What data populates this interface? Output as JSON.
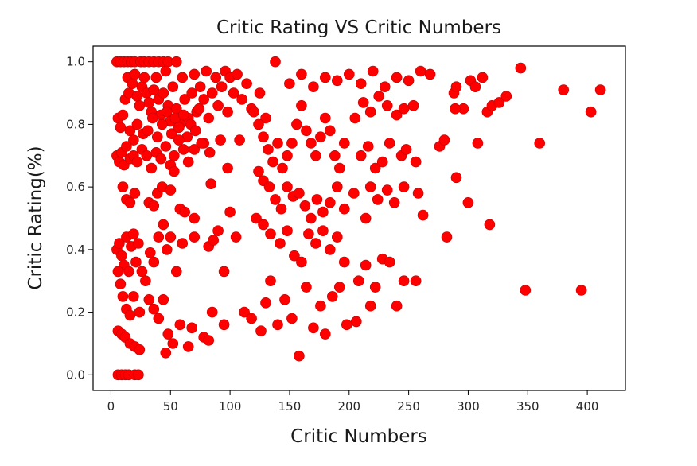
{
  "chart_data": {
    "type": "scatter",
    "title": "Critic Rating VS Critic Numbers",
    "xlabel": "Critic Numbers",
    "ylabel": "Critic Rating(%)",
    "xlim": [
      -15,
      432
    ],
    "ylim": [
      -0.05,
      1.05
    ],
    "xticks": [
      "0",
      "50",
      "100",
      "150",
      "200",
      "250",
      "300",
      "350",
      "400"
    ],
    "yticks": [
      "0.0",
      "0.2",
      "0.4",
      "0.6",
      "0.8",
      "1.0"
    ],
    "xtick_values": [
      0,
      50,
      100,
      150,
      200,
      250,
      300,
      350,
      400
    ],
    "ytick_values": [
      0.0,
      0.2,
      0.4,
      0.6,
      0.8,
      1.0
    ],
    "grid": false,
    "marker_color": "#ff0000",
    "edge_color": "#c00000",
    "points": [
      [
        5,
        1.0
      ],
      [
        8,
        1.0
      ],
      [
        11,
        1.0
      ],
      [
        14,
        1.0
      ],
      [
        17,
        1.0
      ],
      [
        20,
        1.0
      ],
      [
        25,
        1.0
      ],
      [
        28,
        1.0
      ],
      [
        32,
        1.0
      ],
      [
        36,
        1.0
      ],
      [
        40,
        1.0
      ],
      [
        44,
        1.0
      ],
      [
        48,
        1.0
      ],
      [
        55,
        1.0
      ],
      [
        138,
        1.0
      ],
      [
        6,
        0.0
      ],
      [
        9,
        0.0
      ],
      [
        12,
        0.0
      ],
      [
        15,
        0.0
      ],
      [
        20,
        0.0
      ],
      [
        23,
        0.0
      ],
      [
        6,
        0.82
      ],
      [
        8,
        0.79
      ],
      [
        10,
        0.83
      ],
      [
        12,
        0.88
      ],
      [
        14,
        0.95
      ],
      [
        15,
        0.9
      ],
      [
        18,
        0.93
      ],
      [
        20,
        0.96
      ],
      [
        22,
        0.89
      ],
      [
        24,
        0.86
      ],
      [
        26,
        0.92
      ],
      [
        28,
        0.95
      ],
      [
        30,
        0.9
      ],
      [
        32,
        0.87
      ],
      [
        34,
        0.84
      ],
      [
        36,
        0.91
      ],
      [
        38,
        0.95
      ],
      [
        40,
        0.88
      ],
      [
        42,
        0.83
      ],
      [
        44,
        0.9
      ],
      [
        46,
        0.97
      ],
      [
        48,
        0.86
      ],
      [
        50,
        0.81
      ],
      [
        52,
        0.92
      ],
      [
        55,
        0.85
      ],
      [
        58,
        0.8
      ],
      [
        60,
        0.95
      ],
      [
        62,
        0.88
      ],
      [
        65,
        0.82
      ],
      [
        68,
        0.9
      ],
      [
        70,
        0.96
      ],
      [
        72,
        0.84
      ],
      [
        75,
        0.92
      ],
      [
        78,
        0.88
      ],
      [
        80,
        0.97
      ],
      [
        82,
        0.82
      ],
      [
        85,
        0.9
      ],
      [
        88,
        0.95
      ],
      [
        90,
        0.86
      ],
      [
        93,
        0.92
      ],
      [
        96,
        0.97
      ],
      [
        98,
        0.84
      ],
      [
        100,
        0.95
      ],
      [
        103,
        0.9
      ],
      [
        106,
        0.96
      ],
      [
        110,
        0.88
      ],
      [
        114,
        0.93
      ],
      [
        118,
        0.85
      ],
      [
        125,
        0.9
      ],
      [
        130,
        0.82
      ],
      [
        16,
        0.78
      ],
      [
        19,
        0.75
      ],
      [
        22,
        0.8
      ],
      [
        27,
        0.77
      ],
      [
        31,
        0.78
      ],
      [
        35,
        0.82
      ],
      [
        39,
        0.76
      ],
      [
        43,
        0.8
      ],
      [
        47,
        0.84
      ],
      [
        51,
        0.77
      ],
      [
        54,
        0.82
      ],
      [
        57,
        0.79
      ],
      [
        61,
        0.83
      ],
      [
        64,
        0.76
      ],
      [
        67,
        0.8
      ],
      [
        71,
        0.78
      ],
      [
        74,
        0.85
      ],
      [
        78,
        0.74
      ],
      [
        5,
        0.7
      ],
      [
        7,
        0.68
      ],
      [
        9,
        0.71
      ],
      [
        11,
        0.67
      ],
      [
        13,
        0.73
      ],
      [
        16,
        0.69
      ],
      [
        19,
        0.7
      ],
      [
        22,
        0.68
      ],
      [
        26,
        0.72
      ],
      [
        30,
        0.7
      ],
      [
        34,
        0.66
      ],
      [
        38,
        0.71
      ],
      [
        42,
        0.69
      ],
      [
        46,
        0.73
      ],
      [
        50,
        0.67
      ],
      [
        53,
        0.7
      ],
      [
        57,
        0.75
      ],
      [
        61,
        0.72
      ],
      [
        65,
        0.68
      ],
      [
        70,
        0.72
      ],
      [
        76,
        0.74
      ],
      [
        83,
        0.71
      ],
      [
        92,
        0.75
      ],
      [
        98,
        0.66
      ],
      [
        108,
        0.75
      ],
      [
        10,
        0.6
      ],
      [
        13,
        0.56
      ],
      [
        16,
        0.55
      ],
      [
        20,
        0.58
      ],
      [
        32,
        0.55
      ],
      [
        36,
        0.54
      ],
      [
        39,
        0.58
      ],
      [
        43,
        0.6
      ],
      [
        50,
        0.59
      ],
      [
        53,
        0.65
      ],
      [
        58,
        0.53
      ],
      [
        62,
        0.52
      ],
      [
        70,
        0.5
      ],
      [
        84,
        0.61
      ],
      [
        100,
        0.52
      ],
      [
        5,
        0.4
      ],
      [
        7,
        0.42
      ],
      [
        9,
        0.38
      ],
      [
        11,
        0.35
      ],
      [
        13,
        0.44
      ],
      [
        15,
        0.33
      ],
      [
        17,
        0.41
      ],
      [
        19,
        0.45
      ],
      [
        21,
        0.36
      ],
      [
        23,
        0.42
      ],
      [
        26,
        0.33
      ],
      [
        29,
        0.3
      ],
      [
        33,
        0.39
      ],
      [
        36,
        0.36
      ],
      [
        40,
        0.44
      ],
      [
        44,
        0.48
      ],
      [
        47,
        0.4
      ],
      [
        50,
        0.44
      ],
      [
        55,
        0.33
      ],
      [
        60,
        0.42
      ],
      [
        70,
        0.44
      ],
      [
        82,
        0.41
      ],
      [
        86,
        0.43
      ],
      [
        90,
        0.46
      ],
      [
        95,
        0.33
      ],
      [
        105,
        0.44
      ],
      [
        6,
        0.33
      ],
      [
        8,
        0.29
      ],
      [
        10,
        0.25
      ],
      [
        13,
        0.21
      ],
      [
        16,
        0.19
      ],
      [
        19,
        0.25
      ],
      [
        24,
        0.2
      ],
      [
        32,
        0.24
      ],
      [
        36,
        0.21
      ],
      [
        40,
        0.18
      ],
      [
        44,
        0.24
      ],
      [
        48,
        0.13
      ],
      [
        52,
        0.1
      ],
      [
        58,
        0.16
      ],
      [
        68,
        0.15
      ],
      [
        78,
        0.12
      ],
      [
        85,
        0.2
      ],
      [
        95,
        0.16
      ],
      [
        6,
        0.14
      ],
      [
        9,
        0.13
      ],
      [
        12,
        0.12
      ],
      [
        16,
        0.1
      ],
      [
        20,
        0.09
      ],
      [
        24,
        0.08
      ],
      [
        46,
        0.07
      ],
      [
        65,
        0.09
      ],
      [
        82,
        0.11
      ],
      [
        120,
        0.84
      ],
      [
        124,
        0.8
      ],
      [
        128,
        0.76
      ],
      [
        132,
        0.72
      ],
      [
        136,
        0.68
      ],
      [
        140,
        0.74
      ],
      [
        144,
        0.66
      ],
      [
        148,
        0.7
      ],
      [
        152,
        0.74
      ],
      [
        156,
        0.8
      ],
      [
        160,
        0.86
      ],
      [
        164,
        0.78
      ],
      [
        168,
        0.74
      ],
      [
        172,
        0.7
      ],
      [
        176,
        0.76
      ],
      [
        180,
        0.82
      ],
      [
        184,
        0.78
      ],
      [
        188,
        0.7
      ],
      [
        192,
        0.66
      ],
      [
        196,
        0.74
      ],
      [
        124,
        0.65
      ],
      [
        128,
        0.62
      ],
      [
        133,
        0.6
      ],
      [
        138,
        0.56
      ],
      [
        143,
        0.53
      ],
      [
        148,
        0.6
      ],
      [
        153,
        0.57
      ],
      [
        158,
        0.58
      ],
      [
        163,
        0.54
      ],
      [
        168,
        0.5
      ],
      [
        173,
        0.56
      ],
      [
        178,
        0.52
      ],
      [
        184,
        0.55
      ],
      [
        190,
        0.6
      ],
      [
        196,
        0.53
      ],
      [
        204,
        0.58
      ],
      [
        122,
        0.5
      ],
      [
        128,
        0.48
      ],
      [
        134,
        0.45
      ],
      [
        142,
        0.42
      ],
      [
        148,
        0.46
      ],
      [
        154,
        0.38
      ],
      [
        160,
        0.36
      ],
      [
        166,
        0.45
      ],
      [
        172,
        0.42
      ],
      [
        178,
        0.46
      ],
      [
        184,
        0.4
      ],
      [
        190,
        0.44
      ],
      [
        196,
        0.36
      ],
      [
        112,
        0.2
      ],
      [
        118,
        0.18
      ],
      [
        126,
        0.14
      ],
      [
        130,
        0.23
      ],
      [
        134,
        0.3
      ],
      [
        140,
        0.16
      ],
      [
        146,
        0.24
      ],
      [
        152,
        0.18
      ],
      [
        158,
        0.06
      ],
      [
        164,
        0.28
      ],
      [
        170,
        0.15
      ],
      [
        176,
        0.22
      ],
      [
        180,
        0.13
      ],
      [
        186,
        0.25
      ],
      [
        192,
        0.28
      ],
      [
        198,
        0.16
      ],
      [
        206,
        0.17
      ],
      [
        150,
        0.93
      ],
      [
        160,
        0.96
      ],
      [
        170,
        0.92
      ],
      [
        180,
        0.95
      ],
      [
        190,
        0.94
      ],
      [
        200,
        0.96
      ],
      [
        210,
        0.93
      ],
      [
        220,
        0.97
      ],
      [
        230,
        0.92
      ],
      [
        240,
        0.95
      ],
      [
        250,
        0.94
      ],
      [
        260,
        0.97
      ],
      [
        268,
        0.96
      ],
      [
        205,
        0.82
      ],
      [
        212,
        0.87
      ],
      [
        218,
        0.84
      ],
      [
        225,
        0.89
      ],
      [
        232,
        0.86
      ],
      [
        240,
        0.83
      ],
      [
        246,
        0.85
      ],
      [
        254,
        0.86
      ],
      [
        210,
        0.7
      ],
      [
        216,
        0.73
      ],
      [
        222,
        0.66
      ],
      [
        228,
        0.68
      ],
      [
        234,
        0.74
      ],
      [
        244,
        0.7
      ],
      [
        248,
        0.72
      ],
      [
        256,
        0.68
      ],
      [
        214,
        0.5
      ],
      [
        218,
        0.6
      ],
      [
        224,
        0.56
      ],
      [
        232,
        0.59
      ],
      [
        238,
        0.55
      ],
      [
        246,
        0.6
      ],
      [
        258,
        0.58
      ],
      [
        262,
        0.51
      ],
      [
        208,
        0.3
      ],
      [
        214,
        0.35
      ],
      [
        218,
        0.22
      ],
      [
        222,
        0.28
      ],
      [
        228,
        0.37
      ],
      [
        234,
        0.36
      ],
      [
        240,
        0.22
      ],
      [
        246,
        0.3
      ],
      [
        256,
        0.3
      ],
      [
        276,
        0.73
      ],
      [
        280,
        0.75
      ],
      [
        288,
        0.9
      ],
      [
        290,
        0.92
      ],
      [
        296,
        0.85
      ],
      [
        302,
        0.94
      ],
      [
        306,
        0.92
      ],
      [
        308,
        0.74
      ],
      [
        312,
        0.95
      ],
      [
        316,
        0.84
      ],
      [
        320,
        0.86
      ],
      [
        326,
        0.87
      ],
      [
        332,
        0.89
      ],
      [
        344,
        0.98
      ],
      [
        360,
        0.74
      ],
      [
        380,
        0.91
      ],
      [
        403,
        0.84
      ],
      [
        411,
        0.91
      ],
      [
        282,
        0.44
      ],
      [
        290,
        0.63
      ],
      [
        300,
        0.55
      ],
      [
        318,
        0.48
      ],
      [
        348,
        0.27
      ],
      [
        395,
        0.27
      ],
      [
        289,
        0.85
      ]
    ]
  }
}
